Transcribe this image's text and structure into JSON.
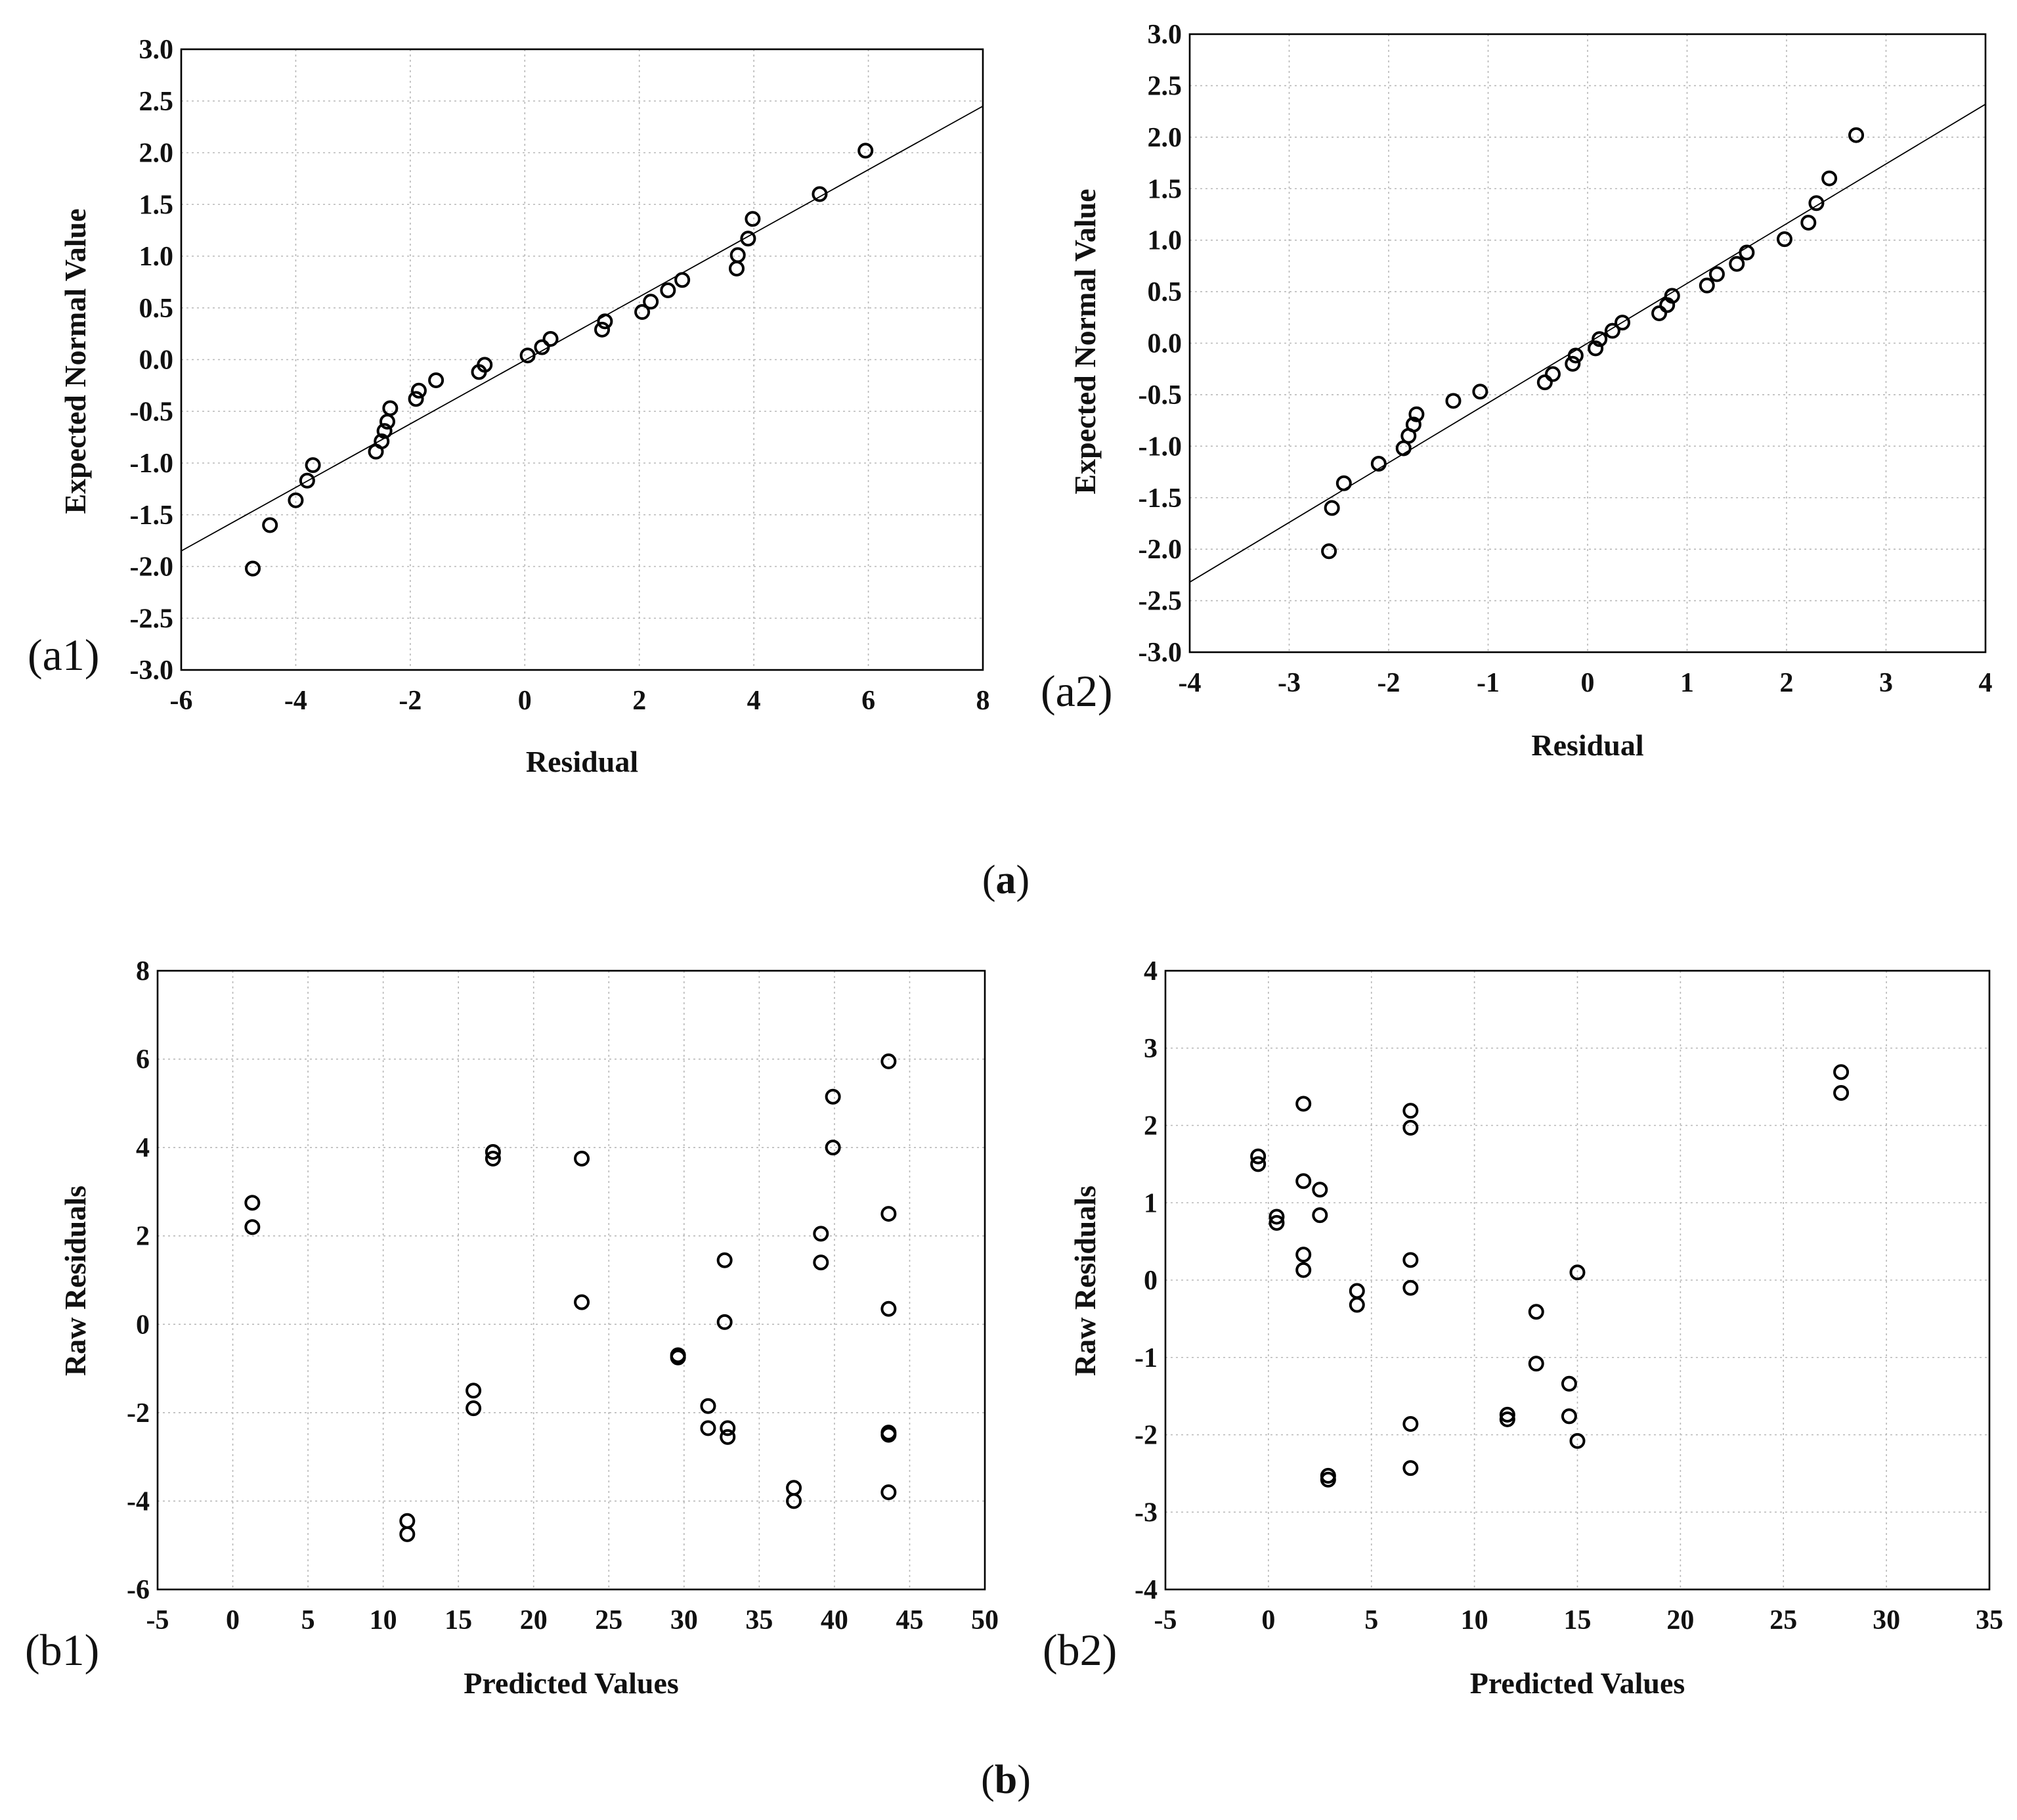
{
  "figure": {
    "group_a_caption": "a",
    "group_b_caption": "b"
  },
  "chart_data": [
    {
      "id": "a1",
      "type": "scatter",
      "panel_label": "(a1)",
      "title": "",
      "xlabel": "Residual",
      "ylabel": "Expected Normal Value",
      "xlim": [
        -6,
        8
      ],
      "ylim": [
        -3,
        3
      ],
      "xticks": [
        -6,
        -4,
        -2,
        0,
        2,
        4,
        6,
        8
      ],
      "yticks": [
        -3,
        -2.5,
        -2,
        -1.5,
        -1,
        -0.5,
        0,
        0.5,
        1,
        1.5,
        2,
        2.5,
        3
      ],
      "xtick_labels": [
        "-6",
        "-4",
        "-2",
        "0",
        "2",
        "4",
        "6",
        "8"
      ],
      "ytick_labels": [
        "-3.0",
        "-2.5",
        "-2.0",
        "-1.5",
        "-1.0",
        "-0.5",
        "0.0",
        "0.5",
        "1.0",
        "1.5",
        "2.0",
        "2.5",
        "3.0"
      ],
      "grid": true,
      "fit_line": {
        "x": [
          -6,
          8
        ],
        "y": [
          -1.85,
          2.45
        ]
      },
      "points": {
        "x": [
          -4.75,
          -4.45,
          -4.0,
          -3.8,
          -3.7,
          -2.6,
          -2.5,
          -2.45,
          -2.4,
          -2.35,
          -1.9,
          -1.85,
          -1.55,
          -0.8,
          -0.7,
          0.05,
          0.3,
          0.45,
          1.35,
          1.4,
          2.05,
          2.2,
          2.5,
          2.75,
          3.7,
          3.72,
          3.9,
          3.98,
          5.15,
          5.95
        ],
        "y": [
          -2.02,
          -1.6,
          -1.36,
          -1.17,
          -1.02,
          -0.89,
          -0.79,
          -0.69,
          -0.6,
          -0.47,
          -0.38,
          -0.3,
          -0.2,
          -0.12,
          -0.05,
          0.04,
          0.12,
          0.2,
          0.29,
          0.37,
          0.46,
          0.56,
          0.67,
          0.77,
          0.88,
          1.01,
          1.17,
          1.36,
          1.6,
          2.02
        ]
      }
    },
    {
      "id": "a2",
      "type": "scatter",
      "panel_label": "(a2)",
      "title": "",
      "xlabel": "Residual",
      "ylabel": "Expected Normal Value",
      "xlim": [
        -4,
        4
      ],
      "ylim": [
        -3,
        3
      ],
      "xticks": [
        -4,
        -3,
        -2,
        -1,
        0,
        1,
        2,
        3,
        4
      ],
      "yticks": [
        -3,
        -2.5,
        -2,
        -1.5,
        -1,
        -0.5,
        0,
        0.5,
        1,
        1.5,
        2,
        2.5,
        3
      ],
      "xtick_labels": [
        "-4",
        "-3",
        "-2",
        "-1",
        "0",
        "1",
        "2",
        "3",
        "4"
      ],
      "ytick_labels": [
        "-3.0",
        "-2.5",
        "-2.0",
        "-1.5",
        "-1.0",
        "-0.5",
        "0.0",
        "0.5",
        "1.0",
        "1.5",
        "2.0",
        "2.5",
        "3.0"
      ],
      "grid": true,
      "fit_line": {
        "x": [
          -4,
          4
        ],
        "y": [
          -2.32,
          2.32
        ]
      },
      "points": {
        "x": [
          -2.6,
          -2.57,
          -2.45,
          -2.1,
          -1.85,
          -1.8,
          -1.75,
          -1.72,
          -1.35,
          -1.08,
          -0.43,
          -0.35,
          -0.15,
          -0.12,
          0.08,
          0.12,
          0.25,
          0.35,
          0.72,
          0.8,
          0.85,
          1.2,
          1.3,
          1.5,
          1.6,
          1.98,
          2.22,
          2.3,
          2.43,
          2.7
        ],
        "y": [
          -2.02,
          -1.6,
          -1.36,
          -1.17,
          -1.02,
          -0.9,
          -0.79,
          -0.69,
          -0.56,
          -0.47,
          -0.38,
          -0.3,
          -0.2,
          -0.12,
          -0.05,
          0.04,
          0.12,
          0.2,
          0.29,
          0.37,
          0.46,
          0.56,
          0.67,
          0.77,
          0.88,
          1.01,
          1.17,
          1.36,
          1.6,
          2.02
        ]
      }
    },
    {
      "id": "b1",
      "type": "scatter",
      "panel_label": "(b1)",
      "title": "",
      "xlabel": "Predicted Values",
      "ylabel": "Raw Residuals",
      "xlim": [
        -5,
        50
      ],
      "ylim": [
        -6,
        8
      ],
      "xticks": [
        -5,
        0,
        5,
        10,
        15,
        20,
        25,
        30,
        35,
        40,
        45,
        50
      ],
      "yticks": [
        -6,
        -4,
        -2,
        0,
        2,
        4,
        6,
        8
      ],
      "xtick_labels": [
        "-5",
        "0",
        "5",
        "10",
        "15",
        "20",
        "25",
        "30",
        "35",
        "40",
        "45",
        "50"
      ],
      "ytick_labels": [
        "-6",
        "-4",
        "-2",
        "0",
        "2",
        "4",
        "6",
        "8"
      ],
      "grid": true,
      "points": {
        "x": [
          1.3,
          1.3,
          11.6,
          11.6,
          16.0,
          16.0,
          17.3,
          17.3,
          23.2,
          23.2,
          29.6,
          29.6,
          31.6,
          31.6,
          32.7,
          32.7,
          32.9,
          32.9,
          37.3,
          37.3,
          39.1,
          39.1,
          39.9,
          39.9,
          43.6,
          43.6,
          43.6,
          43.6,
          43.6,
          43.6
        ],
        "y": [
          2.75,
          2.2,
          -4.45,
          -4.75,
          -1.5,
          -1.9,
          3.9,
          3.75,
          3.75,
          0.5,
          -0.7,
          -0.75,
          -1.85,
          -2.35,
          1.45,
          0.05,
          -2.35,
          -2.55,
          -3.7,
          -4.0,
          2.05,
          1.4,
          5.15,
          4.0,
          5.95,
          2.5,
          0.35,
          -2.45,
          -2.5,
          -3.8
        ]
      }
    },
    {
      "id": "b2",
      "type": "scatter",
      "panel_label": "(b2)",
      "title": "",
      "xlabel": "Predicted Values",
      "ylabel": "Raw Residuals",
      "xlim": [
        -5,
        35
      ],
      "ylim": [
        -4,
        4
      ],
      "xticks": [
        -5,
        0,
        5,
        10,
        15,
        20,
        25,
        30,
        35
      ],
      "yticks": [
        -4,
        -3,
        -2,
        -1,
        0,
        1,
        2,
        3,
        4
      ],
      "xtick_labels": [
        "-5",
        "0",
        "5",
        "10",
        "15",
        "20",
        "25",
        "30",
        "35"
      ],
      "ytick_labels": [
        "-4",
        "-3",
        "-2",
        "-1",
        "0",
        "1",
        "2",
        "3",
        "4"
      ],
      "grid": true,
      "points": {
        "x": [
          -0.5,
          -0.5,
          0.4,
          0.4,
          1.7,
          1.7,
          1.7,
          1.7,
          2.5,
          2.5,
          2.9,
          2.9,
          4.3,
          4.3,
          6.9,
          6.9,
          6.9,
          6.9,
          6.9,
          6.9,
          11.6,
          11.6,
          13.0,
          13.0,
          14.6,
          14.6,
          15.0,
          15.0,
          27.8,
          27.8
        ],
        "y": [
          1.6,
          1.5,
          0.82,
          0.74,
          2.28,
          1.28,
          0.33,
          0.13,
          1.17,
          0.84,
          -2.53,
          -2.58,
          -0.14,
          -0.32,
          2.19,
          1.97,
          0.26,
          -0.1,
          -1.86,
          -2.43,
          -1.74,
          -1.8,
          -0.41,
          -1.08,
          -1.34,
          -1.76,
          0.1,
          -2.08,
          2.69,
          2.42
        ]
      }
    }
  ]
}
